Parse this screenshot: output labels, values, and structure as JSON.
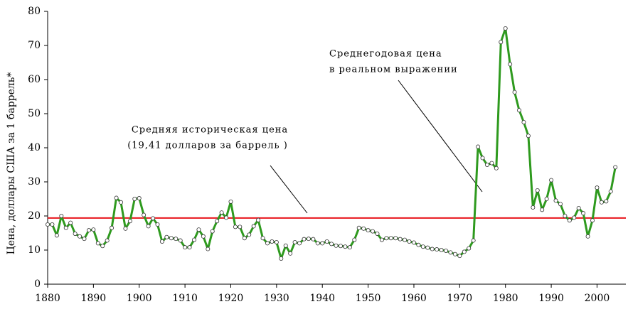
{
  "chart_data": {
    "type": "line",
    "ylabel": "Цена, доллары США за 1 баррель*",
    "annotations": [
      {
        "lines": [
          "Средняя историческая цена",
          "(19,41 долларов за баррель )"
        ]
      },
      {
        "lines": [
          "Среднегодовая цена",
          "в реальном выражении"
        ]
      }
    ],
    "reference_line": {
      "value": 19.41,
      "color": "#e8141b"
    },
    "x": [
      1880,
      1881,
      1882,
      1883,
      1884,
      1885,
      1886,
      1887,
      1888,
      1889,
      1890,
      1891,
      1892,
      1893,
      1894,
      1895,
      1896,
      1897,
      1898,
      1899,
      1900,
      1901,
      1902,
      1903,
      1904,
      1905,
      1906,
      1907,
      1908,
      1909,
      1910,
      1911,
      1912,
      1913,
      1914,
      1915,
      1916,
      1917,
      1918,
      1919,
      1920,
      1921,
      1922,
      1923,
      1924,
      1925,
      1926,
      1927,
      1928,
      1929,
      1930,
      1931,
      1932,
      1933,
      1934,
      1935,
      1936,
      1937,
      1938,
      1939,
      1940,
      1941,
      1942,
      1943,
      1944,
      1945,
      1946,
      1947,
      1948,
      1949,
      1950,
      1951,
      1952,
      1953,
      1954,
      1955,
      1956,
      1957,
      1958,
      1959,
      1960,
      1961,
      1962,
      1963,
      1964,
      1965,
      1966,
      1967,
      1968,
      1969,
      1970,
      1971,
      1972,
      1973,
      1974,
      1975,
      1976,
      1977,
      1978,
      1979,
      1980,
      1981,
      1982,
      1983,
      1984,
      1985,
      1986,
      1987,
      1988,
      1989,
      1990,
      1991,
      1992,
      1993,
      1994,
      1995,
      1996,
      1997,
      1998,
      1999,
      2000,
      2001,
      2002,
      2003,
      2004
    ],
    "series": [
      {
        "color": "#2e9a1e",
        "values": [
          17.5,
          17.5,
          14.3,
          20,
          16.5,
          18,
          14.8,
          14,
          13.3,
          15.8,
          16,
          12,
          11.2,
          12.8,
          16.5,
          25.3,
          24,
          16.3,
          18.5,
          25,
          25.2,
          20.3,
          17,
          19.3,
          17.5,
          12.5,
          13.8,
          13.5,
          13.3,
          12.8,
          10.8,
          10.8,
          13,
          16,
          14,
          10.3,
          15.5,
          18.5,
          21,
          19.5,
          24.2,
          16.8,
          16.8,
          13.5,
          14.5,
          17,
          18.8,
          13.5,
          12,
          12.5,
          12.3,
          7.5,
          11.3,
          9,
          12.3,
          12,
          13.2,
          13.3,
          13.2,
          12,
          12,
          12.5,
          11.8,
          11.3,
          11.2,
          11,
          10.8,
          13,
          16.5,
          16.3,
          15.8,
          15.5,
          14.8,
          13,
          13.5,
          13.5,
          13.5,
          13.2,
          13,
          12.5,
          12.2,
          11.5,
          11,
          10.7,
          10.3,
          10.2,
          10,
          9.8,
          9.3,
          8.8,
          8.3,
          9.5,
          10.5,
          12.8,
          40.3,
          37,
          35,
          35.5,
          34,
          71,
          75,
          64.5,
          56.3,
          51,
          47.5,
          43.5,
          22.5,
          27.5,
          21.8,
          25,
          30.5,
          24.5,
          23.5,
          20,
          18.7,
          19.5,
          22.3,
          20.8,
          14,
          18.7,
          28.3,
          24,
          24.3,
          27.2,
          34.3
        ]
      }
    ],
    "xlim": [
      1880,
      2006.3
    ],
    "xticks": [
      1880,
      1890,
      1900,
      1910,
      1920,
      1930,
      1940,
      1950,
      1960,
      1970,
      1980,
      1990,
      2000
    ],
    "ylim": [
      0,
      80
    ],
    "yticks": [
      0,
      10,
      20,
      30,
      40,
      50,
      60,
      70,
      80
    ]
  }
}
